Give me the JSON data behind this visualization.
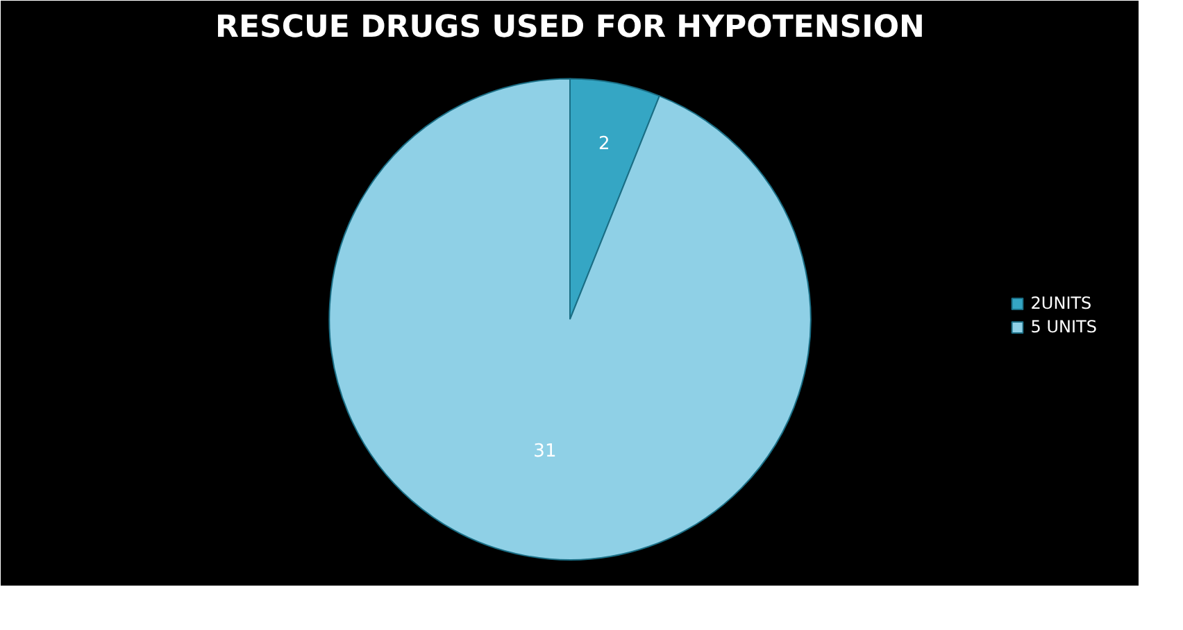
{
  "chart_data": {
    "type": "pie",
    "title": "RESCUE DRUGS USED FOR HYPOTENSION",
    "categories": [
      "2UNITS",
      "5 UNITS"
    ],
    "values": [
      2,
      31
    ],
    "colors": [
      "#35a6c4",
      "#8fd0e6"
    ],
    "data_labels": true,
    "legend": "right"
  }
}
